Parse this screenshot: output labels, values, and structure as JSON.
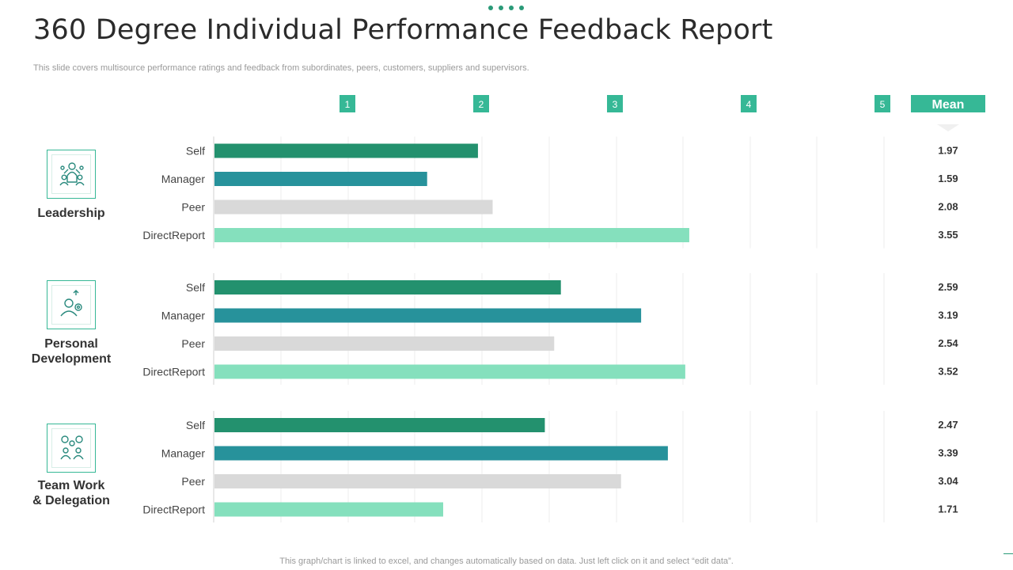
{
  "header": {
    "title": "360 Degree Individual Performance Feedback Report",
    "subtitle": "This slide covers multisource performance ratings and feedback from subordinates, peers, customers, suppliers and supervisors."
  },
  "footer": {
    "note": "This graph/chart is linked to excel,  and changes automatically based on data. Just left click on it and select “edit data”."
  },
  "colors": {
    "Self": "#23916e",
    "Manager": "#27929b",
    "Peer": "#d9d9d9",
    "DirectReport": "#85e0bd",
    "accent": "#36b896"
  },
  "icons": {
    "leadership": "leadership-team-icon",
    "personal_development": "person-gear-growth-icon",
    "team_work": "team-gears-icon"
  },
  "chart_data": {
    "type": "bar",
    "orientation": "horizontal",
    "scale_labels": [
      "1",
      "2",
      "3",
      "4",
      "5"
    ],
    "mean_label": "Mean",
    "xlim": [
      0,
      5
    ],
    "grid": true,
    "groups": [
      {
        "name": "Leadership",
        "label_lines": [
          "Leadership"
        ],
        "icon": "leadership-team-icon",
        "rows": [
          {
            "label": "Self",
            "value": 1.97,
            "mean": "1.97"
          },
          {
            "label": "Manager",
            "value": 1.59,
            "mean": "1.59"
          },
          {
            "label": "Peer",
            "value": 2.08,
            "mean": "2.08"
          },
          {
            "label": "DirectReport",
            "value": 3.55,
            "mean": "3.55"
          }
        ]
      },
      {
        "name": "Personal Development",
        "label_lines": [
          "Personal",
          "Development"
        ],
        "icon": "person-gear-growth-icon",
        "rows": [
          {
            "label": "Self",
            "value": 2.59,
            "mean": "2.59"
          },
          {
            "label": "Manager",
            "value": 3.19,
            "mean": "3.19"
          },
          {
            "label": "Peer",
            "value": 2.54,
            "mean": "2.54"
          },
          {
            "label": "DirectReport",
            "value": 3.52,
            "mean": "3.52"
          }
        ]
      },
      {
        "name": "Team Work & Delegation",
        "label_lines": [
          "Team Work",
          "& Delegation"
        ],
        "icon": "team-gears-icon",
        "rows": [
          {
            "label": "Self",
            "value": 2.47,
            "mean": "2.47"
          },
          {
            "label": "Manager",
            "value": 3.39,
            "mean": "3.39"
          },
          {
            "label": "Peer",
            "value": 3.04,
            "mean": "3.04"
          },
          {
            "label": "DirectReport",
            "value": 1.71,
            "mean": "1.71"
          }
        ]
      }
    ]
  }
}
